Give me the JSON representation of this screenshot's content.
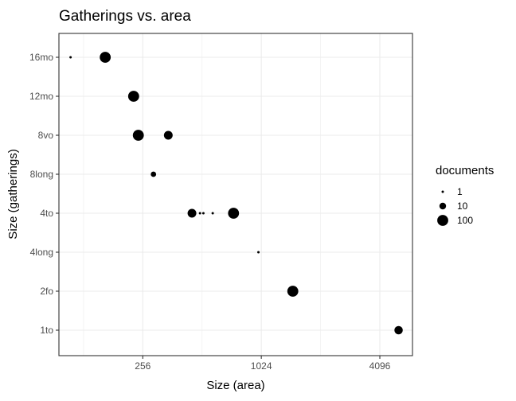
{
  "chart_data": {
    "type": "scatter",
    "title": "Gatherings vs. area",
    "xlabel": "Size (area)",
    "ylabel": "Size (gatherings)",
    "x_scale": "log2",
    "xlim": [
      96,
      6000
    ],
    "x_ticks": [
      256,
      1024,
      4096
    ],
    "x_tick_labels": [
      "256",
      "1024",
      "4096"
    ],
    "y_categories": [
      "1to",
      "2fo",
      "4long",
      "4to",
      "8long",
      "8vo",
      "12mo",
      "16mo"
    ],
    "grid": true,
    "point_color": "#000000",
    "legend": {
      "title": "documents",
      "position": "right",
      "entries": [
        {
          "label": "1",
          "value": 1
        },
        {
          "label": "10",
          "value": 10
        },
        {
          "label": "100",
          "value": 100
        }
      ]
    },
    "points": [
      {
        "x": 110,
        "y": "16mo",
        "documents": 1
      },
      {
        "x": 165,
        "y": "16mo",
        "documents": 100
      },
      {
        "x": 230,
        "y": "12mo",
        "documents": 100
      },
      {
        "x": 243,
        "y": "8vo",
        "documents": 100
      },
      {
        "x": 345,
        "y": "8vo",
        "documents": 30
      },
      {
        "x": 290,
        "y": "8long",
        "documents": 5
      },
      {
        "x": 455,
        "y": "4to",
        "documents": 30
      },
      {
        "x": 500,
        "y": "4to",
        "documents": 1
      },
      {
        "x": 520,
        "y": "4to",
        "documents": 1
      },
      {
        "x": 580,
        "y": "4to",
        "documents": 1
      },
      {
        "x": 740,
        "y": "4to",
        "documents": 100
      },
      {
        "x": 990,
        "y": "4long",
        "documents": 1
      },
      {
        "x": 1480,
        "y": "2fo",
        "documents": 100
      },
      {
        "x": 5100,
        "y": "1to",
        "documents": 25
      }
    ]
  }
}
